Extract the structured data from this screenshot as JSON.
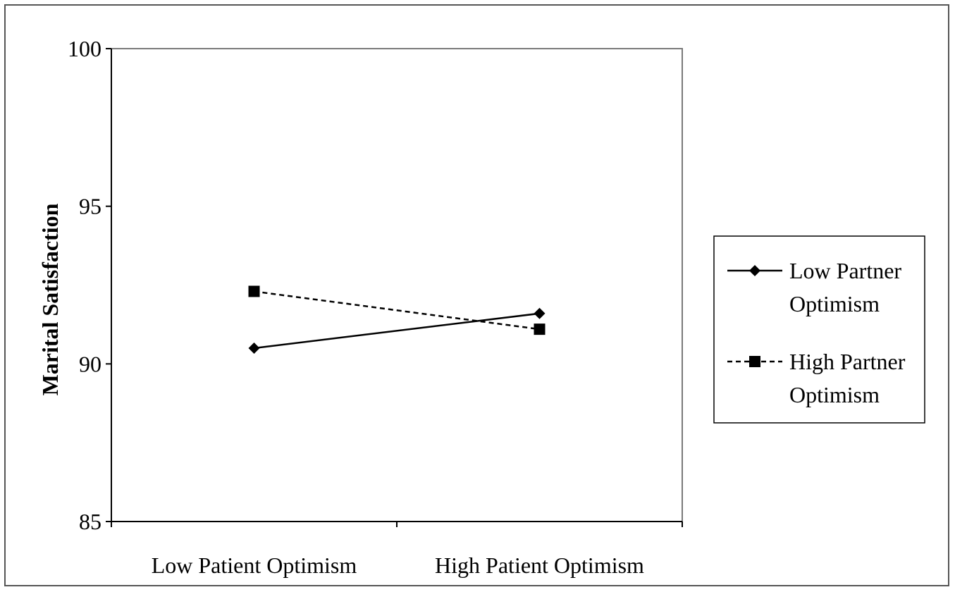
{
  "chart_data": {
    "type": "line",
    "title": "",
    "xlabel": "",
    "ylabel": "Marital Satisfaction",
    "categories": [
      "Low Patient Optimism",
      "High Patient Optimism"
    ],
    "ylim": [
      85,
      100
    ],
    "yticks": [
      85,
      90,
      95,
      100
    ],
    "grid": false,
    "legend_position": "right",
    "series": [
      {
        "name": "Low Partner Optimism",
        "values": [
          90.5,
          91.6
        ],
        "marker": "diamond",
        "line_style": "solid",
        "color": "#000000"
      },
      {
        "name": "High Partner Optimism",
        "values": [
          92.3,
          91.1
        ],
        "marker": "square",
        "line_style": "dashed",
        "color": "#000000"
      }
    ],
    "legend_labels": [
      [
        "Low Partner",
        "Optimism"
      ],
      [
        "High Partner",
        "Optimism"
      ]
    ]
  }
}
